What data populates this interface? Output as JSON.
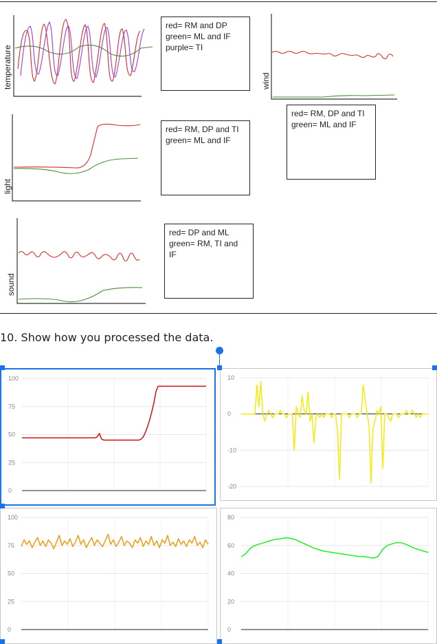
{
  "sketches": [
    {
      "axis_label": "temperature"
    },
    {
      "axis_label": "wind"
    },
    {
      "axis_label": "light"
    },
    {
      "axis_label": "sound"
    }
  ],
  "notes": [
    {
      "lines": [
        "red= RM and DP",
        "green= ML and IF",
        "purple= TI"
      ]
    },
    {
      "lines": [
        "red= RM, DP and TI",
        "green= ML and IF"
      ]
    },
    {
      "lines": [
        "red= RM, DP and TI",
        "green= ML and IF"
      ]
    },
    {
      "lines": [
        "red= DP and ML",
        "green= RM, TI and",
        "IF"
      ]
    }
  ],
  "question": "10. Show how you processed the data.",
  "colors": {
    "red": "#d01010",
    "yellow": "#f5ea10",
    "orange": "#f39a12",
    "green": "#22ee22"
  },
  "chart_data": [
    {
      "type": "line",
      "ylim": [
        0,
        100
      ],
      "yticks": [
        0,
        25,
        50,
        75,
        100
      ],
      "series": [
        {
          "color": "#d01010",
          "values": [
            47,
            47,
            47,
            47,
            47,
            47,
            47,
            47,
            47,
            47,
            47,
            47,
            47,
            47,
            47,
            47,
            47,
            47,
            47,
            47,
            47,
            47,
            47,
            47,
            47,
            47,
            47,
            47,
            47,
            47,
            47,
            47,
            47,
            47,
            47,
            47,
            48,
            51,
            46,
            45,
            45,
            45,
            45,
            45,
            45,
            45,
            45,
            45,
            45,
            45,
            45,
            45,
            45,
            45,
            45,
            45,
            45,
            46,
            48,
            52,
            57,
            63,
            70,
            78,
            88,
            93,
            93,
            93,
            93,
            93,
            93,
            93,
            93,
            93,
            93,
            93,
            93,
            93,
            93,
            93,
            93,
            93,
            93,
            93,
            93,
            93,
            93,
            93,
            93
          ]
        }
      ]
    },
    {
      "type": "line",
      "ylim": [
        -20,
        10
      ],
      "yticks": [
        -20,
        -10,
        0,
        10
      ],
      "series": [
        {
          "color": "#f5ea10",
          "values": [
            0,
            0,
            0,
            0,
            0,
            0,
            0,
            0,
            8,
            2,
            9,
            0,
            -2,
            0,
            1,
            0,
            -1,
            0,
            0,
            0,
            1,
            0,
            0,
            -1,
            0,
            0,
            0,
            -10,
            2,
            0,
            -1,
            5,
            1,
            0,
            6,
            -2,
            0,
            -8,
            -1,
            0,
            -1,
            0,
            -1,
            0,
            0,
            0,
            -1,
            0,
            0,
            -5,
            -18,
            0,
            0,
            0,
            0,
            -1,
            0,
            0,
            0,
            -1,
            0,
            0,
            8,
            4,
            0,
            -3,
            -19,
            -4,
            -2,
            1,
            0,
            2,
            -15,
            0,
            0,
            -1,
            -2,
            0,
            0,
            0,
            -1,
            0,
            0,
            0,
            1,
            0,
            0,
            1,
            0,
            -1,
            0,
            -1,
            0,
            0,
            0,
            0
          ]
        }
      ]
    },
    {
      "type": "line",
      "ylim": [
        0,
        100
      ],
      "yticks": [
        0,
        25,
        50,
        75,
        100
      ],
      "series": [
        {
          "color": "#f39a12",
          "values": [
            74,
            80,
            76,
            79,
            73,
            78,
            82,
            75,
            79,
            74,
            80,
            77,
            72,
            78,
            84,
            75,
            79,
            76,
            81,
            74,
            78,
            84,
            76,
            80,
            73,
            78,
            82,
            75,
            80,
            77,
            74,
            79,
            85,
            76,
            80,
            74,
            78,
            83,
            75,
            79,
            77,
            73,
            80,
            77,
            82,
            74,
            79,
            76,
            83,
            75,
            79,
            73,
            80,
            77,
            84,
            75,
            78,
            74,
            81,
            76,
            79,
            74,
            80,
            77,
            83,
            75,
            78,
            73,
            80,
            76
          ]
        }
      ]
    },
    {
      "type": "line",
      "ylim": [
        0,
        80
      ],
      "yticks": [
        0,
        20,
        40,
        60,
        80
      ],
      "series": [
        {
          "color": "#22ee22",
          "values": [
            52,
            54,
            58,
            60,
            61,
            62,
            63,
            64,
            64.5,
            65,
            65.5,
            65,
            64,
            62.5,
            61,
            59.5,
            58,
            57,
            56,
            55.5,
            55,
            54.5,
            54,
            53.5,
            53,
            52.5,
            52,
            52,
            51.5,
            51,
            52,
            57,
            60,
            61,
            62,
            62,
            61,
            59.5,
            58,
            57,
            56,
            55
          ]
        }
      ]
    }
  ]
}
